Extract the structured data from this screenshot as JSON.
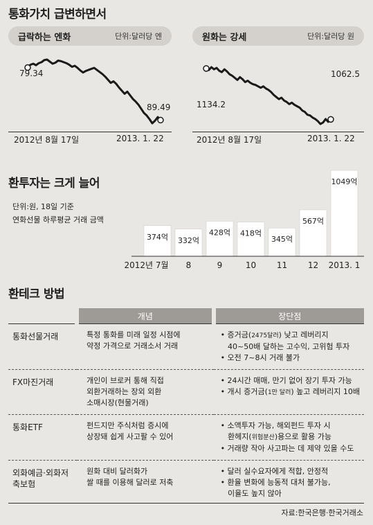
{
  "title_main": "통화가치 급변하면서",
  "yen_panel": {
    "title": "급락하는 엔화",
    "unit": "단위:달러당 엔",
    "start_label": "79.34",
    "end_label": "89.49",
    "x_start": "2012년 8월 17일",
    "x_end": "2013. 1. 22"
  },
  "won_panel": {
    "title": "원화는 강세",
    "unit": "단위:달러당 원",
    "start_label": "1134.2",
    "end_label": "1062.5",
    "x_start": "2012년 8월 17일",
    "x_end": "2013. 1. 22"
  },
  "bars_section": {
    "title": "환투자는 크게 늘어",
    "note1": "단위:원, 18일 기준",
    "note2": "연화선물 하루평균 거래 금액"
  },
  "method_section": {
    "title": "환테크 방법"
  },
  "table": {
    "headers": [
      "개념",
      "장단점"
    ],
    "rows": [
      {
        "name": "통화선물거래",
        "concept": [
          "특정 통화를 미래 일정 시점에",
          "약정 가격으로 거래소서 거래"
        ],
        "pros": [
          [
            "• 증거금(",
            "2475달러",
            ") 낮고 레버리지"
          ],
          [
            "  40~50배 달하는 고수익, 고위험 투자"
          ],
          [
            "• 오전 7~8시 거래 불가"
          ]
        ]
      },
      {
        "name": "FX마진거래",
        "concept": [
          "개인이 브로커 통해 직접",
          "외환거래하는 장외 외환",
          "소매시장(현물거래)"
        ],
        "pros": [
          [
            "• 24시간 매매, 만기 없어 장기 투자 가능"
          ],
          [
            "• 개시 증거금(",
            "1만 달러",
            ") 높고 레버리지 10배"
          ]
        ]
      },
      {
        "name": "통화ETF",
        "concept": [
          "펀드지만 주식처럼 증시에",
          "상장돼 쉽게 사고팔 수 있어"
        ],
        "pros": [
          [
            "• 소액투자 가능, 해외펀드 투자 시"
          ],
          [
            "  환헤지(",
            "위험분산",
            ")용으로 활용 가능"
          ],
          [
            "• 거래량 작아 사고파는 데 제약 있을 수도"
          ]
        ]
      },
      {
        "name": "외화예금·외화저축보험",
        "concept": [
          "원화 대비 달러화가",
          "쌀 때를 이용해 달러로 저축"
        ],
        "pros": [
          [
            "• 달러 실수요자에게 적합, 안정적"
          ],
          [
            "• 환율 변화에 능동적 대처 불가능,"
          ],
          [
            "  이율도 높지 않아"
          ]
        ]
      }
    ]
  },
  "source": "자료:한국은행·한국거래소",
  "chart_data": [
    {
      "type": "line",
      "title": "급락하는 엔화",
      "unit": "단위:달러당 엔",
      "x_start": "2012년 8월 17일",
      "x_end": "2013. 1. 22",
      "start_value": 79.34,
      "end_value": 89.49,
      "values": [
        79.34,
        78.8,
        78.6,
        78.9,
        78.5,
        78.3,
        77.9,
        77.8,
        78.2,
        78.6,
        78.4,
        78.0,
        78.1,
        78.3,
        78.5,
        78.8,
        79.2,
        79.0,
        79.4,
        79.9,
        80.3,
        80.0,
        79.8,
        79.6,
        79.4,
        79.8,
        80.2,
        80.6,
        81.1,
        81.7,
        82.3,
        82.0,
        82.5,
        83.2,
        83.8,
        84.4,
        84.0,
        84.7,
        85.4,
        85.9,
        86.5,
        87.3,
        88.1,
        88.6,
        89.3,
        90.1,
        89.6,
        88.9,
        89.49
      ]
    },
    {
      "type": "line",
      "title": "원화는 강세",
      "unit": "단위:달러당 원",
      "x_start": "2012년 8월 17일",
      "x_end": "2013. 1. 22",
      "start_value": 1134.2,
      "end_value": 1062.5,
      "values": [
        1134.2,
        1132,
        1136,
        1133,
        1135,
        1131,
        1129,
        1133,
        1130,
        1126,
        1124,
        1121,
        1118,
        1122,
        1119,
        1115,
        1117,
        1114,
        1112,
        1111,
        1109,
        1107,
        1109,
        1106,
        1104,
        1101,
        1097,
        1094,
        1091,
        1093,
        1089,
        1087,
        1084,
        1086,
        1083,
        1081,
        1079,
        1075,
        1073,
        1069,
        1068,
        1065,
        1063,
        1060,
        1056,
        1058,
        1063,
        1059,
        1062.5
      ]
    },
    {
      "type": "bar",
      "title": "환투자는 크게 늘어",
      "unit": "억",
      "categories": [
        "2012년 7월",
        "8",
        "9",
        "10",
        "11",
        "12",
        "2013. 1"
      ],
      "values": [
        374,
        332,
        428,
        418,
        345,
        567,
        1049
      ],
      "value_labels": [
        "374억",
        "332억",
        "428억",
        "418억",
        "345억",
        "567억",
        "1049억"
      ]
    }
  ]
}
